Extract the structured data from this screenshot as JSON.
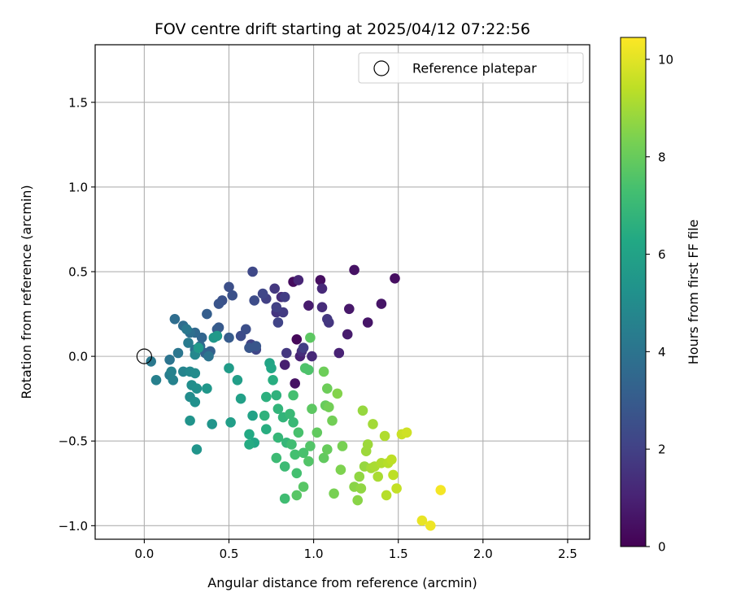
{
  "chart_data": {
    "type": "scatter",
    "title": "FOV centre drift starting at 2025/04/12 07:22:56",
    "xlabel": "Angular distance from reference (arcmin)",
    "ylabel": "Rotation from reference (arcmin)",
    "xlim": [
      -0.29,
      2.63
    ],
    "ylim": [
      -1.08,
      1.84
    ],
    "xticks": [
      0.0,
      0.5,
      1.0,
      1.5,
      2.0,
      2.5
    ],
    "yticks": [
      -1.0,
      -0.5,
      0.0,
      0.5,
      1.0,
      1.5
    ],
    "xtick_labels": [
      "0.0",
      "0.5",
      "1.0",
      "1.5",
      "2.0",
      "2.5"
    ],
    "ytick_labels": [
      "−1.0",
      "−0.5",
      "0.0",
      "0.5",
      "1.0",
      "1.5"
    ],
    "grid": true,
    "legend": {
      "placement": "top-right",
      "entries": [
        {
          "label": "Reference platepar",
          "marker": "open-circle"
        }
      ]
    },
    "reference_point": {
      "x": 0.0,
      "y": 0.0
    },
    "colorbar": {
      "label": "Hours from first FF file",
      "colormap": "viridis",
      "range": [
        0,
        10.45
      ],
      "ticks": [
        0,
        2,
        4,
        6,
        8,
        10
      ],
      "tick_labels": [
        "0",
        "2",
        "4",
        "6",
        "8",
        "10"
      ]
    },
    "points": [
      {
        "x": 0.88,
        "y": 0.44,
        "c": 0.3
      },
      {
        "x": 1.04,
        "y": 0.45,
        "c": 0.4
      },
      {
        "x": 1.24,
        "y": 0.51,
        "c": 0.5
      },
      {
        "x": 1.48,
        "y": 0.46,
        "c": 0.4
      },
      {
        "x": 1.4,
        "y": 0.31,
        "c": 0.6
      },
      {
        "x": 1.21,
        "y": 0.28,
        "c": 0.7
      },
      {
        "x": 1.32,
        "y": 0.2,
        "c": 0.6
      },
      {
        "x": 1.2,
        "y": 0.13,
        "c": 0.8
      },
      {
        "x": 0.97,
        "y": 0.3,
        "c": 0.8
      },
      {
        "x": 0.9,
        "y": 0.1,
        "c": 0.2
      },
      {
        "x": 0.89,
        "y": -0.16,
        "c": 0.5
      },
      {
        "x": 0.83,
        "y": -0.05,
        "c": 0.9
      },
      {
        "x": 1.15,
        "y": 0.02,
        "c": 1.0
      },
      {
        "x": 0.92,
        "y": 0.0,
        "c": 1.0
      },
      {
        "x": 0.91,
        "y": 0.45,
        "c": 1.1
      },
      {
        "x": 1.05,
        "y": 0.4,
        "c": 1.2
      },
      {
        "x": 0.99,
        "y": 0.0,
        "c": 1.2
      },
      {
        "x": 0.81,
        "y": 0.35,
        "c": 1.3
      },
      {
        "x": 0.93,
        "y": 0.03,
        "c": 1.4
      },
      {
        "x": 1.05,
        "y": 0.29,
        "c": 1.3
      },
      {
        "x": 0.78,
        "y": 0.26,
        "c": 1.6
      },
      {
        "x": 1.09,
        "y": 0.2,
        "c": 1.6
      },
      {
        "x": 0.84,
        "y": 0.02,
        "c": 1.7
      },
      {
        "x": 0.77,
        "y": 0.4,
        "c": 1.7
      },
      {
        "x": 1.08,
        "y": 0.22,
        "c": 1.7
      },
      {
        "x": 0.82,
        "y": 0.26,
        "c": 1.8
      },
      {
        "x": 0.94,
        "y": 0.05,
        "c": 1.9
      },
      {
        "x": 0.83,
        "y": 0.35,
        "c": 1.9
      },
      {
        "x": 0.72,
        "y": 0.34,
        "c": 2.0
      },
      {
        "x": 0.78,
        "y": 0.29,
        "c": 2.0
      },
      {
        "x": 0.79,
        "y": 0.2,
        "c": 2.1
      },
      {
        "x": 0.63,
        "y": 0.07,
        "c": 2.1
      },
      {
        "x": 0.7,
        "y": 0.37,
        "c": 2.2
      },
      {
        "x": 0.66,
        "y": 0.04,
        "c": 2.2
      },
      {
        "x": 0.64,
        "y": 0.5,
        "c": 2.3
      },
      {
        "x": 0.57,
        "y": 0.12,
        "c": 2.4
      },
      {
        "x": 0.65,
        "y": 0.33,
        "c": 2.4
      },
      {
        "x": 0.6,
        "y": 0.16,
        "c": 2.5
      },
      {
        "x": 0.5,
        "y": 0.41,
        "c": 2.5
      },
      {
        "x": 0.52,
        "y": 0.36,
        "c": 2.6
      },
      {
        "x": 0.46,
        "y": 0.33,
        "c": 2.6
      },
      {
        "x": 0.44,
        "y": 0.31,
        "c": 2.7
      },
      {
        "x": 0.62,
        "y": 0.05,
        "c": 2.8
      },
      {
        "x": 0.66,
        "y": 0.06,
        "c": 2.8
      },
      {
        "x": 0.44,
        "y": 0.17,
        "c": 2.9
      },
      {
        "x": 0.5,
        "y": 0.11,
        "c": 3.0
      },
      {
        "x": 0.43,
        "y": 0.16,
        "c": 3.0
      },
      {
        "x": 0.37,
        "y": 0.25,
        "c": 3.1
      },
      {
        "x": 0.39,
        "y": 0.03,
        "c": 3.2
      },
      {
        "x": 0.36,
        "y": 0.02,
        "c": 3.3
      },
      {
        "x": 0.34,
        "y": 0.11,
        "c": 3.4
      },
      {
        "x": 0.3,
        "y": 0.14,
        "c": 3.5
      },
      {
        "x": 0.33,
        "y": 0.06,
        "c": 3.6
      },
      {
        "x": 0.23,
        "y": 0.18,
        "c": 3.7
      },
      {
        "x": 0.18,
        "y": 0.22,
        "c": 3.7
      },
      {
        "x": 0.27,
        "y": 0.14,
        "c": 3.8
      },
      {
        "x": 0.3,
        "y": 0.04,
        "c": 3.9
      },
      {
        "x": 0.38,
        "y": 0.0,
        "c": 4.0
      },
      {
        "x": 0.15,
        "y": -0.02,
        "c": 4.0
      },
      {
        "x": 0.2,
        "y": 0.02,
        "c": 4.1
      },
      {
        "x": 0.25,
        "y": 0.16,
        "c": 4.2
      },
      {
        "x": 0.04,
        "y": -0.03,
        "c": 4.2
      },
      {
        "x": 0.26,
        "y": 0.08,
        "c": 4.3
      },
      {
        "x": 0.15,
        "y": -0.11,
        "c": 4.4
      },
      {
        "x": 0.07,
        "y": -0.14,
        "c": 4.5
      },
      {
        "x": 0.17,
        "y": -0.14,
        "c": 4.6
      },
      {
        "x": 0.16,
        "y": -0.09,
        "c": 4.6
      },
      {
        "x": 0.23,
        "y": -0.09,
        "c": 4.7
      },
      {
        "x": 0.3,
        "y": 0.01,
        "c": 4.8
      },
      {
        "x": 0.27,
        "y": -0.09,
        "c": 4.9
      },
      {
        "x": 0.27,
        "y": -0.24,
        "c": 5.0
      },
      {
        "x": 0.3,
        "y": -0.1,
        "c": 5.0
      },
      {
        "x": 0.28,
        "y": -0.17,
        "c": 5.1
      },
      {
        "x": 0.31,
        "y": -0.19,
        "c": 5.2
      },
      {
        "x": 0.3,
        "y": -0.27,
        "c": 5.2
      },
      {
        "x": 0.27,
        "y": -0.38,
        "c": 5.3
      },
      {
        "x": 0.31,
        "y": -0.55,
        "c": 5.4
      },
      {
        "x": 0.4,
        "y": -0.4,
        "c": 5.4
      },
      {
        "x": 0.37,
        "y": -0.19,
        "c": 5.5
      },
      {
        "x": 0.41,
        "y": 0.11,
        "c": 5.5
      },
      {
        "x": 0.43,
        "y": 0.12,
        "c": 5.6
      },
      {
        "x": 0.32,
        "y": 0.05,
        "c": 5.6
      },
      {
        "x": 0.5,
        "y": -0.07,
        "c": 5.7
      },
      {
        "x": 0.55,
        "y": -0.14,
        "c": 5.8
      },
      {
        "x": 0.51,
        "y": -0.39,
        "c": 5.8
      },
      {
        "x": 0.57,
        "y": -0.25,
        "c": 5.9
      },
      {
        "x": 0.64,
        "y": -0.35,
        "c": 6.0
      },
      {
        "x": 0.74,
        "y": -0.04,
        "c": 6.1
      },
      {
        "x": 0.75,
        "y": -0.07,
        "c": 6.2
      },
      {
        "x": 0.65,
        "y": -0.51,
        "c": 6.2
      },
      {
        "x": 0.62,
        "y": -0.46,
        "c": 6.3
      },
      {
        "x": 0.62,
        "y": -0.52,
        "c": 6.4
      },
      {
        "x": 0.72,
        "y": -0.43,
        "c": 6.5
      },
      {
        "x": 0.76,
        "y": -0.14,
        "c": 6.5
      },
      {
        "x": 0.72,
        "y": -0.24,
        "c": 6.6
      },
      {
        "x": 0.78,
        "y": -0.23,
        "c": 6.7
      },
      {
        "x": 0.71,
        "y": -0.35,
        "c": 6.7
      },
      {
        "x": 0.79,
        "y": -0.31,
        "c": 6.8
      },
      {
        "x": 0.82,
        "y": -0.36,
        "c": 6.8
      },
      {
        "x": 0.79,
        "y": -0.48,
        "c": 6.9
      },
      {
        "x": 0.84,
        "y": -0.51,
        "c": 6.9
      },
      {
        "x": 0.88,
        "y": -0.39,
        "c": 7.0
      },
      {
        "x": 0.86,
        "y": -0.34,
        "c": 7.0
      },
      {
        "x": 0.83,
        "y": -0.65,
        "c": 7.1
      },
      {
        "x": 0.78,
        "y": -0.6,
        "c": 7.1
      },
      {
        "x": 0.83,
        "y": -0.84,
        "c": 7.2
      },
      {
        "x": 0.87,
        "y": -0.52,
        "c": 7.2
      },
      {
        "x": 0.89,
        "y": -0.58,
        "c": 7.3
      },
      {
        "x": 0.9,
        "y": -0.69,
        "c": 7.3
      },
      {
        "x": 0.88,
        "y": -0.23,
        "c": 7.3
      },
      {
        "x": 0.91,
        "y": -0.45,
        "c": 7.4
      },
      {
        "x": 0.94,
        "y": -0.57,
        "c": 7.4
      },
      {
        "x": 0.95,
        "y": -0.07,
        "c": 7.5
      },
      {
        "x": 0.97,
        "y": -0.08,
        "c": 7.5
      },
      {
        "x": 0.98,
        "y": -0.53,
        "c": 7.6
      },
      {
        "x": 0.97,
        "y": -0.62,
        "c": 7.6
      },
      {
        "x": 0.94,
        "y": -0.77,
        "c": 7.7
      },
      {
        "x": 0.9,
        "y": -0.82,
        "c": 7.7
      },
      {
        "x": 0.98,
        "y": 0.11,
        "c": 7.8
      },
      {
        "x": 0.99,
        "y": -0.31,
        "c": 7.8
      },
      {
        "x": 1.02,
        "y": -0.45,
        "c": 7.9
      },
      {
        "x": 1.06,
        "y": -0.6,
        "c": 7.9
      },
      {
        "x": 1.07,
        "y": -0.29,
        "c": 8.0
      },
      {
        "x": 1.08,
        "y": -0.55,
        "c": 8.0
      },
      {
        "x": 1.06,
        "y": -0.09,
        "c": 8.1
      },
      {
        "x": 1.08,
        "y": -0.19,
        "c": 8.1
      },
      {
        "x": 1.09,
        "y": -0.3,
        "c": 8.2
      },
      {
        "x": 1.11,
        "y": -0.38,
        "c": 8.2
      },
      {
        "x": 1.12,
        "y": -0.81,
        "c": 8.3
      },
      {
        "x": 1.17,
        "y": -0.53,
        "c": 8.3
      },
      {
        "x": 1.16,
        "y": -0.67,
        "c": 8.4
      },
      {
        "x": 1.14,
        "y": -0.22,
        "c": 8.5
      },
      {
        "x": 1.24,
        "y": -0.77,
        "c": 8.6
      },
      {
        "x": 1.26,
        "y": -0.85,
        "c": 8.6
      },
      {
        "x": 1.27,
        "y": -0.71,
        "c": 8.7
      },
      {
        "x": 1.28,
        "y": -0.78,
        "c": 8.7
      },
      {
        "x": 1.29,
        "y": -0.32,
        "c": 8.8
      },
      {
        "x": 1.3,
        "y": -0.65,
        "c": 8.8
      },
      {
        "x": 1.31,
        "y": -0.56,
        "c": 8.9
      },
      {
        "x": 1.32,
        "y": -0.52,
        "c": 8.9
      },
      {
        "x": 1.34,
        "y": -0.66,
        "c": 9.0
      },
      {
        "x": 1.35,
        "y": -0.4,
        "c": 9.0
      },
      {
        "x": 1.36,
        "y": -0.65,
        "c": 9.1
      },
      {
        "x": 1.38,
        "y": -0.71,
        "c": 9.1
      },
      {
        "x": 1.4,
        "y": -0.63,
        "c": 9.2
      },
      {
        "x": 1.42,
        "y": -0.47,
        "c": 9.2
      },
      {
        "x": 1.43,
        "y": -0.82,
        "c": 9.3
      },
      {
        "x": 1.44,
        "y": -0.63,
        "c": 9.3
      },
      {
        "x": 1.46,
        "y": -0.61,
        "c": 9.4
      },
      {
        "x": 1.47,
        "y": -0.7,
        "c": 9.4
      },
      {
        "x": 1.49,
        "y": -0.78,
        "c": 9.5
      },
      {
        "x": 1.52,
        "y": -0.46,
        "c": 9.6
      },
      {
        "x": 1.55,
        "y": -0.45,
        "c": 9.7
      },
      {
        "x": 1.64,
        "y": -0.97,
        "c": 10.1
      },
      {
        "x": 1.69,
        "y": -1.0,
        "c": 10.2
      },
      {
        "x": 1.75,
        "y": -0.79,
        "c": 10.3
      }
    ]
  }
}
